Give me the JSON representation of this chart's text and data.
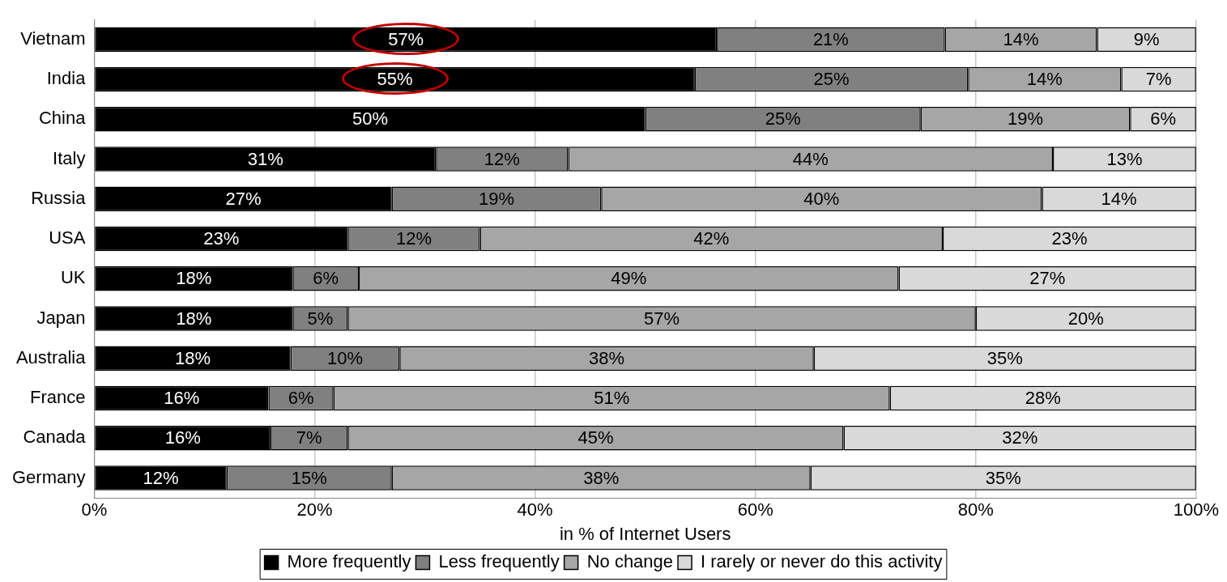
{
  "chart_data": {
    "type": "bar",
    "orientation": "horizontal",
    "stacked": true,
    "xlabel": "in % of Internet Users",
    "categories": [
      "Vietnam",
      "India",
      "China",
      "Italy",
      "Russia",
      "USA",
      "UK",
      "Japan",
      "Australia",
      "France",
      "Canada",
      "Germany"
    ],
    "series": [
      {
        "name": "More frequently",
        "color": "#000000",
        "values": [
          56.5,
          54.5,
          50,
          31,
          27,
          23,
          18,
          18,
          17.8,
          15.8,
          16,
          12
        ],
        "value_labels": [
          "57%",
          "55%",
          "50%",
          "31%",
          "27%",
          "23%",
          "18%",
          "18%",
          "18%",
          "16%",
          "16%",
          "12%"
        ]
      },
      {
        "name": "Less frequently",
        "color": "#808080",
        "values": [
          20.7,
          24.8,
          25,
          12,
          19,
          12,
          6,
          5,
          9.9,
          5.9,
          7,
          15
        ],
        "value_labels": [
          "21%",
          "25%",
          "25%",
          "12%",
          "19%",
          "12%",
          "6%",
          "5%",
          "10%",
          "6%",
          "7%",
          "15%"
        ]
      },
      {
        "name": "No change",
        "color": "#a6a6a6",
        "values": [
          13.8,
          13.9,
          19,
          44,
          40,
          42,
          49,
          57,
          37.6,
          50.5,
          45,
          38
        ],
        "value_labels": [
          "14%",
          "14%",
          "19%",
          "44%",
          "40%",
          "42%",
          "49%",
          "57%",
          "38%",
          "51%",
          "45%",
          "38%"
        ]
      },
      {
        "name": "I rarely or never do this activity",
        "color": "#d9d9d9",
        "values": [
          9,
          6.8,
          6,
          13,
          14,
          23,
          27,
          20,
          34.7,
          27.8,
          32,
          35
        ],
        "value_labels": [
          "9%",
          "7%",
          "6%",
          "13%",
          "14%",
          "23%",
          "27%",
          "20%",
          "35%",
          "28%",
          "32%",
          "35%"
        ]
      }
    ],
    "xlim": [
      0,
      100
    ],
    "xticks": [
      {
        "value": 0,
        "label": "0%"
      },
      {
        "value": 20,
        "label": "20%"
      },
      {
        "value": 40,
        "label": "40%"
      },
      {
        "value": 60,
        "label": "60%"
      },
      {
        "value": 80,
        "label": "80%"
      },
      {
        "value": 100,
        "label": "100%"
      }
    ],
    "grid": "x",
    "legend": "bottom"
  }
}
